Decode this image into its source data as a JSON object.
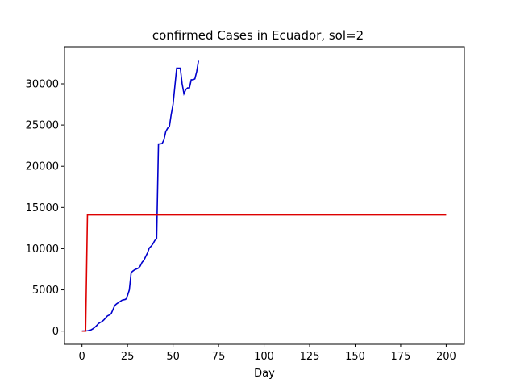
{
  "chart_data": {
    "type": "line",
    "title": "confirmed Cases in Ecuador, sol=2",
    "xlabel": "Day",
    "ylabel": "",
    "xlim": [
      -9.6,
      210
    ],
    "ylim": [
      -1600,
      34500
    ],
    "xticks": [
      0,
      25,
      50,
      75,
      100,
      125,
      150,
      175,
      200
    ],
    "yticks": [
      0,
      5000,
      10000,
      15000,
      20000,
      25000,
      30000
    ],
    "grid": false,
    "series": [
      {
        "color": "#0000cc",
        "x": [
          0,
          1,
          2,
          3,
          4,
          5,
          6,
          7,
          8,
          9,
          10,
          11,
          12,
          13,
          14,
          15,
          16,
          17,
          18,
          19,
          20,
          21,
          22,
          23,
          24,
          25,
          26,
          27,
          28,
          29,
          30,
          31,
          32,
          33,
          34,
          35,
          36,
          37,
          38,
          39,
          40,
          41,
          42,
          43,
          44,
          45,
          46,
          47,
          48,
          49,
          50,
          51,
          52,
          53,
          54,
          55,
          56,
          57,
          58,
          59,
          60,
          61,
          62,
          63,
          64
        ],
        "y": [
          0,
          10,
          25,
          40,
          80,
          150,
          280,
          450,
          650,
          900,
          1050,
          1150,
          1350,
          1600,
          1850,
          1950,
          2100,
          2600,
          3100,
          3300,
          3450,
          3600,
          3750,
          3800,
          3850,
          4300,
          5000,
          7100,
          7300,
          7450,
          7550,
          7650,
          7900,
          8350,
          8600,
          9050,
          9500,
          10100,
          10300,
          10600,
          11000,
          11200,
          22700,
          22720,
          22750,
          23200,
          24200,
          24600,
          24800,
          26300,
          27500,
          29700,
          31900,
          31900,
          31900,
          30000,
          28800,
          29300,
          29500,
          29500,
          30500,
          30500,
          30600,
          31500,
          32800
        ]
      },
      {
        "color": "#dd0000",
        "x": [
          0,
          1,
          2,
          2.5,
          3,
          5,
          50,
          100,
          150,
          200
        ],
        "y": [
          0,
          0,
          0,
          7000,
          14100,
          14100,
          14100,
          14100,
          14100,
          14100
        ]
      }
    ]
  }
}
